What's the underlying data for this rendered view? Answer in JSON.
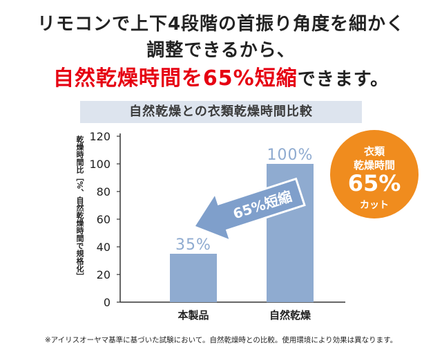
{
  "headline": {
    "line1": "リモコンで上下4段階の首振り角度を細かく",
    "line2": "調整できるから、",
    "line3_emphasis": "自然乾燥時間を65%短縮",
    "line3_rest": "できます。"
  },
  "colors": {
    "accent_red": "#e60012",
    "bar": "#8fabd0",
    "badge": "#f08c1e",
    "banner_bg": "#dde4ee"
  },
  "chart_data": {
    "type": "bar",
    "title": "自然乾燥との衣類乾燥時間比較",
    "ylabel": "乾燥時間比［%、自然乾燥時間で規格化］",
    "xlabel": "",
    "categories": [
      "本製品",
      "自然乾燥"
    ],
    "values": [
      35,
      100
    ],
    "data_labels": [
      "35%",
      "100%"
    ],
    "ylim": [
      0,
      120
    ],
    "yticks": [
      0,
      20,
      40,
      60,
      80,
      100,
      120
    ],
    "grid": false,
    "arrow_label": "65%短縮"
  },
  "badge": {
    "line1": "衣類",
    "line2": "乾燥時間",
    "line3": "65%",
    "line4": "カット"
  },
  "footnote": "※アイリスオーヤマ基準に基づいた試験において。自然乾燥時との比較。使用環境により効果は異なります。"
}
